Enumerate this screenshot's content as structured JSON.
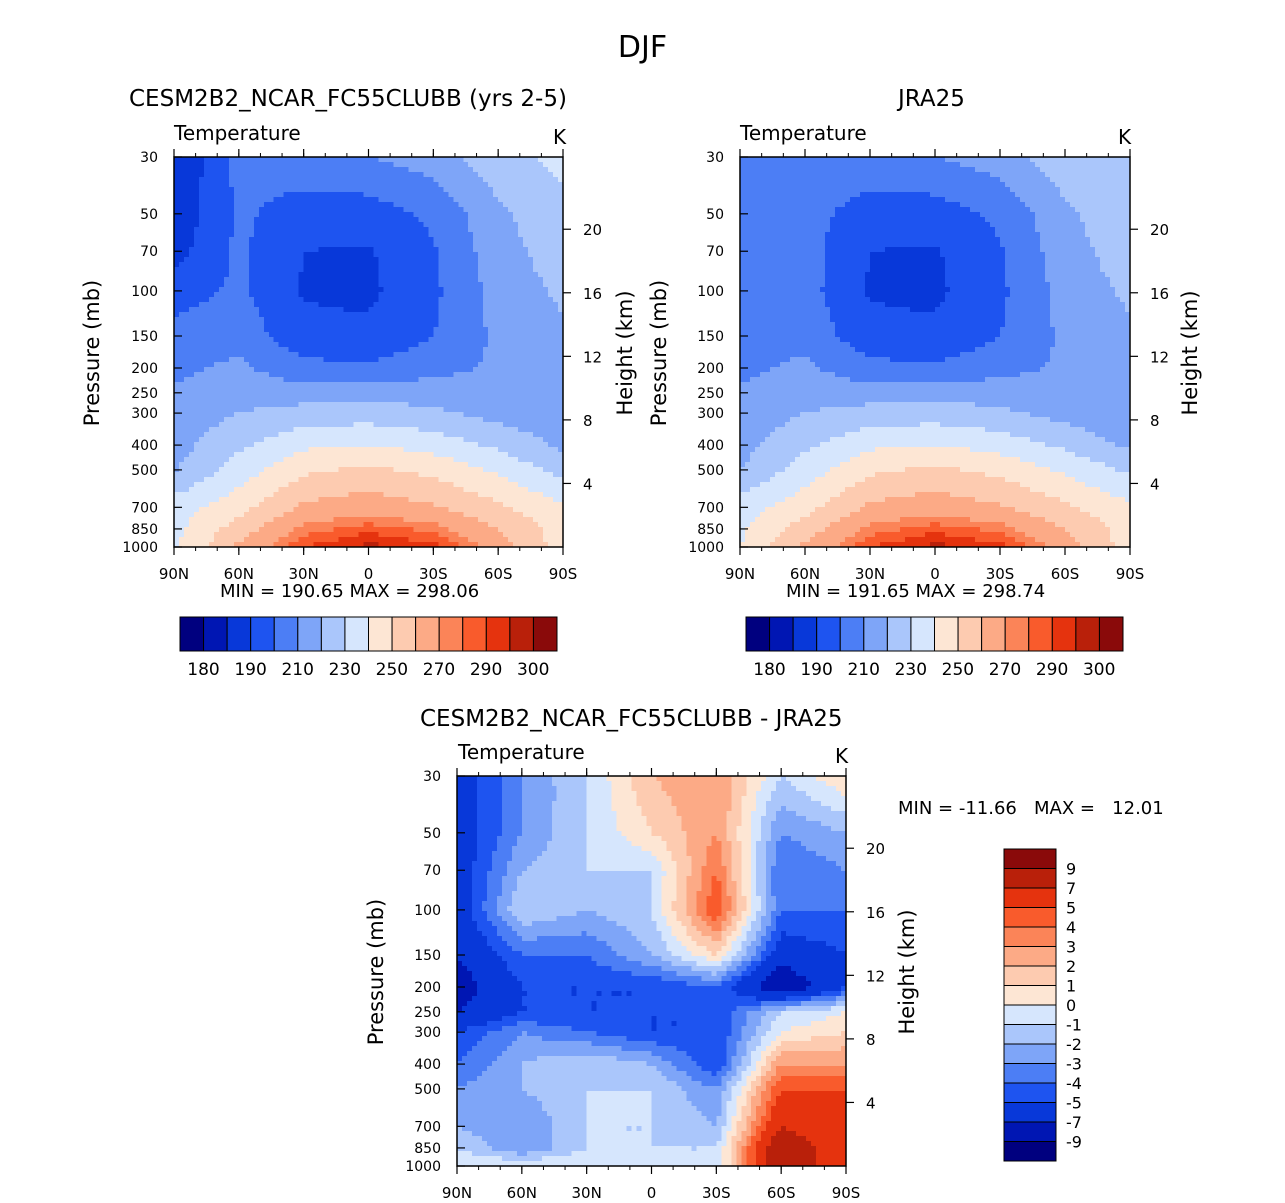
{
  "figure": {
    "season": "DJF",
    "variable": "Temperature",
    "units": "K"
  },
  "panels": {
    "model": {
      "title": "CESM2B2_NCAR_FC55CLUBB (yrs 2-5)",
      "variable": "Temperature",
      "units": "K",
      "stats": "MIN = 190.65   MAX = 298.06",
      "min": 190.65,
      "max": 298.06
    },
    "obs": {
      "title": "JRA25",
      "variable": "Temperature",
      "units": "K",
      "stats": "MIN = 191.65   MAX = 298.74",
      "min": 191.65,
      "max": 298.74
    },
    "diff": {
      "title": "CESM2B2_NCAR_FC55CLUBB - JRA25",
      "variable": "Temperature",
      "units": "K",
      "stats": "MIN = -11.66   MAX =   12.01",
      "min": -11.66,
      "max": 12.01
    }
  },
  "axes": {
    "ylabel": "Pressure (mb)",
    "y2label": "Height (km)",
    "pressure_ticks": [
      "30",
      "50",
      "70",
      "100",
      "150",
      "200",
      "250",
      "300",
      "400",
      "500",
      "700",
      "850",
      "1000"
    ],
    "pressure_values": [
      30,
      50,
      70,
      100,
      150,
      200,
      250,
      300,
      400,
      500,
      700,
      850,
      1000
    ],
    "height_ticks": [
      "20",
      "16",
      "12",
      "8",
      "4"
    ],
    "lat_ticks": [
      "90N",
      "60N",
      "30N",
      "0",
      "30S",
      "60S",
      "90S"
    ],
    "lat_values": [
      90,
      60,
      30,
      0,
      -30,
      -60,
      -90
    ]
  },
  "colorbars": {
    "abs": {
      "labels": [
        "180",
        "190",
        "210",
        "230",
        "250",
        "270",
        "290",
        "300"
      ],
      "colors": [
        "#00007f",
        "#0016b3",
        "#0838d9",
        "#1e54f0",
        "#4c7ef5",
        "#7ea5f8",
        "#aac6fb",
        "#d6e6fd",
        "#fde6d4",
        "#fdcbb0",
        "#fcaa86",
        "#fb8458",
        "#f95b2c",
        "#e5330e",
        "#b9200a",
        "#8a0a0a"
      ]
    },
    "diff": {
      "labels": [
        "9",
        "7",
        "5",
        "4",
        "3",
        "2",
        "1",
        "0",
        "-1",
        "-2",
        "-3",
        "-4",
        "-5",
        "-7",
        "-9"
      ],
      "colors": [
        "#8a0a0a",
        "#b9200a",
        "#e5330e",
        "#f95b2c",
        "#fb8458",
        "#fcaa86",
        "#fdcbb0",
        "#fde6d4",
        "#d6e6fd",
        "#aac6fb",
        "#7ea5f8",
        "#4c7ef5",
        "#1e54f0",
        "#0838d9",
        "#0016b3",
        "#00007f"
      ]
    }
  },
  "chart_data": [
    {
      "type": "heatmap",
      "title": "CESM2B2_NCAR_FC55CLUBB (yrs 2-5)",
      "subtitle": "Temperature",
      "units": "K",
      "xlabel": "",
      "ylabel": "Pressure (mb)",
      "y2label": "Height (km)",
      "x": [
        90,
        60,
        30,
        0,
        -30,
        -60,
        -90
      ],
      "y": [
        30,
        50,
        70,
        100,
        150,
        200,
        250,
        300,
        400,
        500,
        700,
        850,
        1000
      ],
      "values": [
        [
          190,
          213,
          217,
          220,
          225,
          236,
          243
        ],
        [
          192,
          212,
          205,
          205,
          212,
          228,
          237
        ],
        [
          196,
          212,
          200,
          199,
          209,
          226,
          235
        ],
        [
          205,
          212,
          199,
          198,
          208,
          224,
          232
        ],
        [
          214,
          216,
          203,
          202,
          210,
          222,
          228
        ],
        [
          218,
          222,
          213,
          212,
          216,
          222,
          225
        ],
        [
          221,
          226,
          225,
          225,
          226,
          225,
          224
        ],
        [
          223,
          230,
          234,
          235,
          232,
          226,
          222
        ],
        [
          226,
          238,
          248,
          250,
          246,
          238,
          228
        ],
        [
          229,
          245,
          258,
          262,
          257,
          248,
          236
        ],
        [
          245,
          256,
          272,
          276,
          271,
          262,
          252
        ],
        [
          247,
          265,
          282,
          288,
          283,
          270,
          255
        ],
        [
          248,
          272,
          290,
          297,
          292,
          276,
          255
        ]
      ],
      "stats": {
        "min": 190.65,
        "max": 298.06
      }
    },
    {
      "type": "heatmap",
      "title": "JRA25",
      "subtitle": "Temperature",
      "units": "K",
      "xlabel": "",
      "ylabel": "Pressure (mb)",
      "y2label": "Height (km)",
      "x": [
        90,
        60,
        30,
        0,
        -30,
        -60,
        -90
      ],
      "y": [
        30,
        50,
        70,
        100,
        150,
        200,
        250,
        300,
        400,
        500,
        700,
        850,
        1000
      ],
      "values": [
        [
          210,
          215,
          217,
          220,
          225,
          236,
          240
        ],
        [
          212,
          214,
          205,
          205,
          212,
          228,
          237
        ],
        [
          212,
          214,
          200,
          199,
          209,
          226,
          235
        ],
        [
          213,
          214,
          199,
          198,
          208,
          224,
          232
        ],
        [
          215,
          217,
          203,
          202,
          210,
          222,
          228
        ],
        [
          218,
          222,
          213,
          212,
          216,
          222,
          225
        ],
        [
          221,
          226,
          225,
          225,
          226,
          225,
          220
        ],
        [
          223,
          230,
          234,
          235,
          232,
          226,
          221
        ],
        [
          226,
          238,
          248,
          250,
          246,
          238,
          228
        ],
        [
          230,
          245,
          258,
          262,
          257,
          248,
          238
        ],
        [
          246,
          256,
          272,
          276,
          271,
          262,
          252
        ],
        [
          248,
          265,
          282,
          288,
          283,
          270,
          255
        ],
        [
          250,
          272,
          290,
          297,
          292,
          276,
          255
        ]
      ],
      "stats": {
        "min": 191.65,
        "max": 298.74
      }
    },
    {
      "type": "heatmap",
      "title": "CESM2B2_NCAR_FC55CLUBB - JRA25",
      "subtitle": "Temperature",
      "units": "K",
      "xlabel": "",
      "ylabel": "Pressure (mb)",
      "y2label": "Height (km)",
      "x": [
        90,
        60,
        30,
        0,
        -30,
        -60,
        -90
      ],
      "y": [
        30,
        50,
        70,
        100,
        150,
        200,
        250,
        300,
        400,
        500,
        700,
        850,
        1000
      ],
      "values": [
        [
          -6,
          -3,
          -1,
          2,
          3,
          -1,
          1
        ],
        [
          -6,
          -3,
          -1,
          1,
          3,
          -3,
          -2
        ],
        [
          -6,
          -2,
          -1,
          -1,
          4,
          -4,
          -3
        ],
        [
          -6,
          -1,
          -2,
          -1,
          5,
          -4,
          -4
        ],
        [
          -7,
          -4,
          -4,
          -2,
          1,
          -6,
          -5
        ],
        [
          -8,
          -5,
          -5,
          -5,
          -4,
          -9,
          -5
        ],
        [
          -7,
          -5,
          -5,
          -5,
          -5,
          -1,
          0
        ],
        [
          -5,
          -3,
          -4,
          -5,
          -5,
          0,
          1
        ],
        [
          -4,
          -2,
          -1,
          -2,
          -5,
          3,
          3
        ],
        [
          -3,
          -2,
          -1,
          -1,
          -3,
          5,
          5
        ],
        [
          -2,
          -3,
          -1,
          -1,
          -2,
          7,
          5
        ],
        [
          -1,
          -3,
          -1,
          -1,
          -1,
          9,
          5
        ],
        [
          0,
          0,
          0,
          -1,
          -1,
          9,
          5
        ]
      ],
      "stats": {
        "min": -11.66,
        "max": 12.01
      }
    }
  ]
}
